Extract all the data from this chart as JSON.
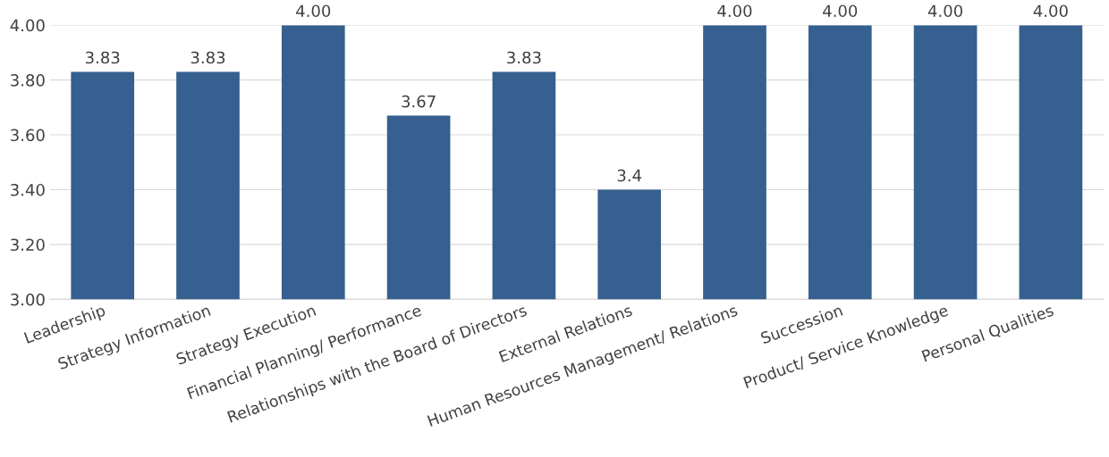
{
  "chart_data": {
    "type": "bar",
    "categories": [
      "Leadership",
      "Strategy Information",
      "Strategy Execution",
      "Financial Planning/ Performance",
      "Relationships with the Board of Directors",
      "External Relations",
      "Human Resources Management/ Relations",
      "Succession",
      "Product/ Service Knowledge",
      "Personal Qualities"
    ],
    "values": [
      3.83,
      3.83,
      4.0,
      3.67,
      3.83,
      3.4,
      4.0,
      4.0,
      4.0,
      4.0
    ],
    "value_labels": [
      "3.83",
      "3.83",
      "4.00",
      "3.67",
      "3.83",
      "3.4",
      "4.00",
      "4.00",
      "4.00",
      "4.00"
    ],
    "color": "#35608f",
    "ylim": [
      3.0,
      4.0
    ],
    "yticks": [
      {
        "value": 3.0,
        "label": "3.00"
      },
      {
        "value": 3.2,
        "label": "3.20"
      },
      {
        "value": 3.4,
        "label": "3.40"
      },
      {
        "value": 3.6,
        "label": "3.60"
      },
      {
        "value": 3.8,
        "label": "3.80"
      },
      {
        "value": 4.0,
        "label": "4.00"
      }
    ],
    "grid": "y"
  }
}
